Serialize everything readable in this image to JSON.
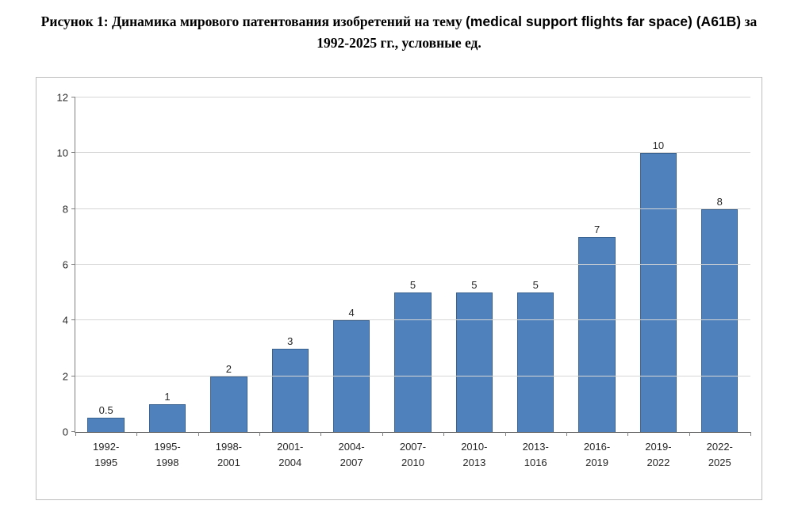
{
  "title": {
    "prefix": "Рисунок 1: Динамика мирового патентования изобретений на тему ",
    "latin": "(medical support flights far space) (A61B)",
    "suffix": " за 1992-2025 гг., условные ед."
  },
  "chart_data": {
    "type": "bar",
    "title": "Рисунок 1: Динамика мирового патентования изобретений на тему (medical support flights far space) (A61B) за 1992-2025 гг., условные ед.",
    "categories": [
      "1992-1995",
      "1995-1998",
      "1998-2001",
      "2001-2004",
      "2004-2007",
      "2007-2010",
      "2010-2013",
      "2013-1016",
      "2016-2019",
      "2019-2022",
      "2022-2025"
    ],
    "values": [
      0.5,
      1,
      2,
      3,
      4,
      5,
      5,
      5,
      7,
      10,
      8
    ],
    "data_labels": [
      "0.5",
      "1",
      "2",
      "3",
      "4",
      "5",
      "5",
      "5",
      "7",
      "10",
      "8"
    ],
    "xlabel": "",
    "ylabel": "",
    "ylim": [
      0,
      12
    ],
    "yticks": [
      0,
      2,
      4,
      6,
      8,
      10,
      12
    ],
    "grid": true,
    "legend": "none",
    "bar_color": "#4f81bd",
    "bar_border_color": "#39618f",
    "gridline_color": "#d6d6d6"
  }
}
